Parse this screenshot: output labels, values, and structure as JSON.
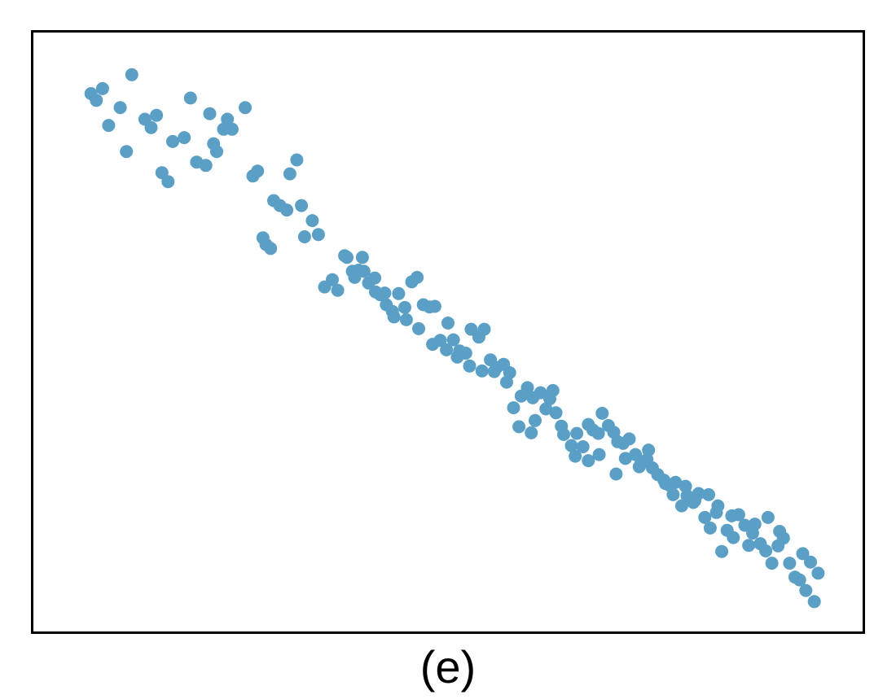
{
  "caption": "(e)",
  "colors": {
    "point": "#5aa0c6",
    "frame": "#000000",
    "background": "#ffffff"
  },
  "chart_data": {
    "type": "scatter",
    "title": "",
    "xlabel": "",
    "ylabel": "",
    "xlim": [
      0,
      100
    ],
    "ylim": [
      0,
      100
    ],
    "axis_ticks": false,
    "grid": false,
    "legend": "none",
    "series": [
      {
        "points": [
          [
            3.7,
            92.8
          ],
          [
            4.4,
            91.6
          ],
          [
            5.2,
            93.7
          ],
          [
            9.0,
            96.2
          ],
          [
            7.5,
            90.3
          ],
          [
            6.0,
            87.1
          ],
          [
            10.7,
            88.2
          ],
          [
            8.3,
            82.4
          ],
          [
            11.5,
            86.7
          ],
          [
            12.2,
            88.9
          ],
          [
            15.8,
            84.9
          ],
          [
            14.3,
            84.2
          ],
          [
            12.9,
            78.6
          ],
          [
            13.7,
            77.0
          ],
          [
            16.6,
            92.0
          ],
          [
            17.4,
            80.5
          ],
          [
            19.1,
            89.2
          ],
          [
            20.0,
            82.4
          ],
          [
            20.9,
            86.4
          ],
          [
            21.4,
            88.2
          ],
          [
            19.6,
            83.8
          ],
          [
            18.6,
            79.9
          ],
          [
            22.0,
            86.4
          ],
          [
            25.3,
            78.9
          ],
          [
            23.7,
            90.3
          ],
          [
            24.7,
            78.0
          ],
          [
            26.4,
            65.7
          ],
          [
            27.0,
            65.0
          ],
          [
            26.0,
            66.9
          ],
          [
            27.4,
            73.6
          ],
          [
            28.2,
            72.7
          ],
          [
            29.5,
            78.4
          ],
          [
            31.0,
            72.7
          ],
          [
            29.1,
            71.9
          ],
          [
            30.4,
            80.9
          ],
          [
            31.4,
            67.1
          ],
          [
            32.4,
            70.0
          ],
          [
            33.2,
            67.5
          ],
          [
            34.0,
            58.1
          ],
          [
            35.0,
            59.4
          ],
          [
            36.6,
            63.7
          ],
          [
            36.9,
            63.4
          ],
          [
            35.7,
            57.5
          ],
          [
            37.6,
            60.9
          ],
          [
            38.4,
            61.1
          ],
          [
            39.1,
            60.9
          ],
          [
            39.7,
            58.8
          ],
          [
            40.5,
            59.7
          ],
          [
            41.2,
            56.7
          ],
          [
            42.0,
            54.9
          ],
          [
            42.8,
            53.7
          ],
          [
            43.6,
            56.9
          ],
          [
            44.4,
            54.4
          ],
          [
            45.3,
            59.0
          ],
          [
            46.0,
            59.8
          ],
          [
            46.8,
            54.9
          ],
          [
            47.6,
            54.5
          ],
          [
            48.3,
            54.6
          ],
          [
            49.0,
            48.5
          ],
          [
            50.0,
            51.6
          ],
          [
            50.7,
            48.6
          ],
          [
            51.5,
            46.6
          ],
          [
            52.3,
            46.2
          ],
          [
            53.0,
            50.5
          ],
          [
            54.0,
            49.1
          ],
          [
            54.7,
            50.5
          ],
          [
            55.5,
            45.0
          ],
          [
            56.3,
            43.6
          ],
          [
            57.2,
            44.2
          ],
          [
            58.0,
            42.7
          ],
          [
            58.5,
            36.4
          ],
          [
            59.5,
            38.5
          ],
          [
            60.3,
            40.0
          ],
          [
            61.0,
            38.2
          ],
          [
            62.0,
            39.1
          ],
          [
            62.7,
            36.2
          ],
          [
            63.6,
            39.5
          ],
          [
            64.7,
            33.1
          ],
          [
            65.0,
            31.6
          ],
          [
            64.0,
            35.5
          ],
          [
            66.0,
            29.6
          ],
          [
            66.7,
            31.8
          ],
          [
            67.5,
            29.4
          ],
          [
            68.2,
            33.4
          ],
          [
            68.8,
            32.4
          ],
          [
            69.5,
            31.8
          ],
          [
            70.0,
            35.4
          ],
          [
            70.8,
            33.2
          ],
          [
            71.5,
            32.0
          ],
          [
            72.0,
            30.3
          ],
          [
            72.7,
            30.0
          ],
          [
            73.5,
            30.8
          ],
          [
            74.3,
            28.0
          ],
          [
            75.0,
            26.3
          ],
          [
            75.8,
            27.1
          ],
          [
            76.5,
            25.6
          ],
          [
            77.2,
            24.4
          ],
          [
            78.0,
            23.4
          ],
          [
            78.7,
            22.5
          ],
          [
            79.5,
            23.0
          ],
          [
            80.3,
            18.8
          ],
          [
            81.0,
            20.6
          ],
          [
            81.8,
            19.4
          ],
          [
            82.5,
            21.0
          ],
          [
            83.3,
            16.7
          ],
          [
            84.0,
            14.8
          ],
          [
            84.8,
            17.6
          ],
          [
            85.5,
            10.6
          ],
          [
            86.2,
            14.4
          ],
          [
            87.0,
            13.1
          ],
          [
            87.7,
            17.2
          ],
          [
            88.5,
            15.3
          ],
          [
            89.0,
            11.7
          ],
          [
            89.8,
            15.5
          ],
          [
            90.5,
            12.0
          ],
          [
            91.2,
            10.7
          ],
          [
            92.0,
            8.5
          ],
          [
            92.8,
            11.6
          ],
          [
            93.5,
            13.0
          ],
          [
            94.3,
            8.5
          ],
          [
            95.0,
            6.0
          ],
          [
            95.6,
            5.5
          ],
          [
            96.4,
            3.6
          ],
          [
            97.0,
            8.7
          ],
          [
            97.5,
            1.6
          ],
          [
            98.0,
            6.7
          ],
          [
            96.0,
            10.2
          ],
          [
            93.0,
            14.2
          ],
          [
            91.5,
            16.7
          ],
          [
            89.5,
            13.9
          ],
          [
            86.8,
            17.0
          ],
          [
            85.0,
            18.8
          ],
          [
            83.8,
            20.8
          ],
          [
            82.0,
            19.7
          ],
          [
            80.8,
            22.3
          ],
          [
            79.2,
            20.8
          ],
          [
            78.2,
            22.8
          ],
          [
            76.0,
            28.8
          ],
          [
            74.8,
            25.8
          ],
          [
            73.0,
            27.3
          ],
          [
            71.8,
            24.5
          ],
          [
            69.6,
            28.0
          ],
          [
            68.2,
            26.9
          ],
          [
            66.5,
            27.7
          ],
          [
            63.2,
            38.0
          ],
          [
            61.3,
            34.1
          ],
          [
            60.8,
            31.9
          ],
          [
            59.2,
            33.0
          ],
          [
            57.6,
            41.0
          ],
          [
            56.0,
            42.9
          ],
          [
            54.4,
            43.0
          ],
          [
            52.8,
            43.9
          ],
          [
            51.2,
            45.5
          ],
          [
            49.8,
            46.8
          ],
          [
            48.0,
            47.8
          ],
          [
            46.2,
            50.6
          ],
          [
            44.6,
            52.2
          ],
          [
            43.0,
            52.7
          ],
          [
            41.8,
            57.0
          ],
          [
            40.6,
            57.2
          ],
          [
            38.9,
            63.4
          ],
          [
            37.9,
            59.8
          ]
        ]
      }
    ]
  }
}
